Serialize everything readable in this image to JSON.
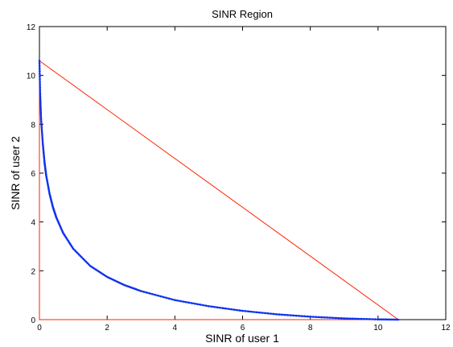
{
  "chart_data": {
    "type": "line",
    "title": "SINR Region",
    "xlabel": "SINR of user 1",
    "ylabel": "SINR of user 2",
    "xlim": [
      0,
      12
    ],
    "ylim": [
      0,
      12
    ],
    "xticks": [
      "0",
      "2",
      "4",
      "6",
      "8",
      "10",
      "12"
    ],
    "yticks": [
      "0",
      "2",
      "4",
      "6",
      "8",
      "10",
      "12"
    ],
    "grid": false,
    "series": [
      {
        "color": "#ff2200",
        "x": [
          0,
          10.6
        ],
        "y": [
          10.6,
          0
        ]
      },
      {
        "color": "#ff2200",
        "x": [
          0,
          0
        ],
        "y": [
          0,
          10.6
        ]
      },
      {
        "color": "#ff2200",
        "x": [
          0,
          10.6
        ],
        "y": [
          0,
          0
        ]
      },
      {
        "color": "#1133ee",
        "marker": "dot",
        "x": [
          0,
          0.02,
          0.05,
          0.1,
          0.15,
          0.2,
          0.3,
          0.4,
          0.5,
          0.7,
          1.0,
          1.5,
          2.0,
          2.5,
          3.0,
          4.0,
          5.0,
          6.0,
          7.0,
          8.0,
          9.0,
          10.0,
          10.6
        ],
        "y": [
          10.6,
          9.3,
          8.2,
          7.2,
          6.45,
          5.9,
          5.15,
          4.6,
          4.18,
          3.55,
          2.9,
          2.2,
          1.75,
          1.42,
          1.17,
          0.8,
          0.55,
          0.36,
          0.22,
          0.12,
          0.05,
          0.01,
          0
        ]
      }
    ]
  }
}
